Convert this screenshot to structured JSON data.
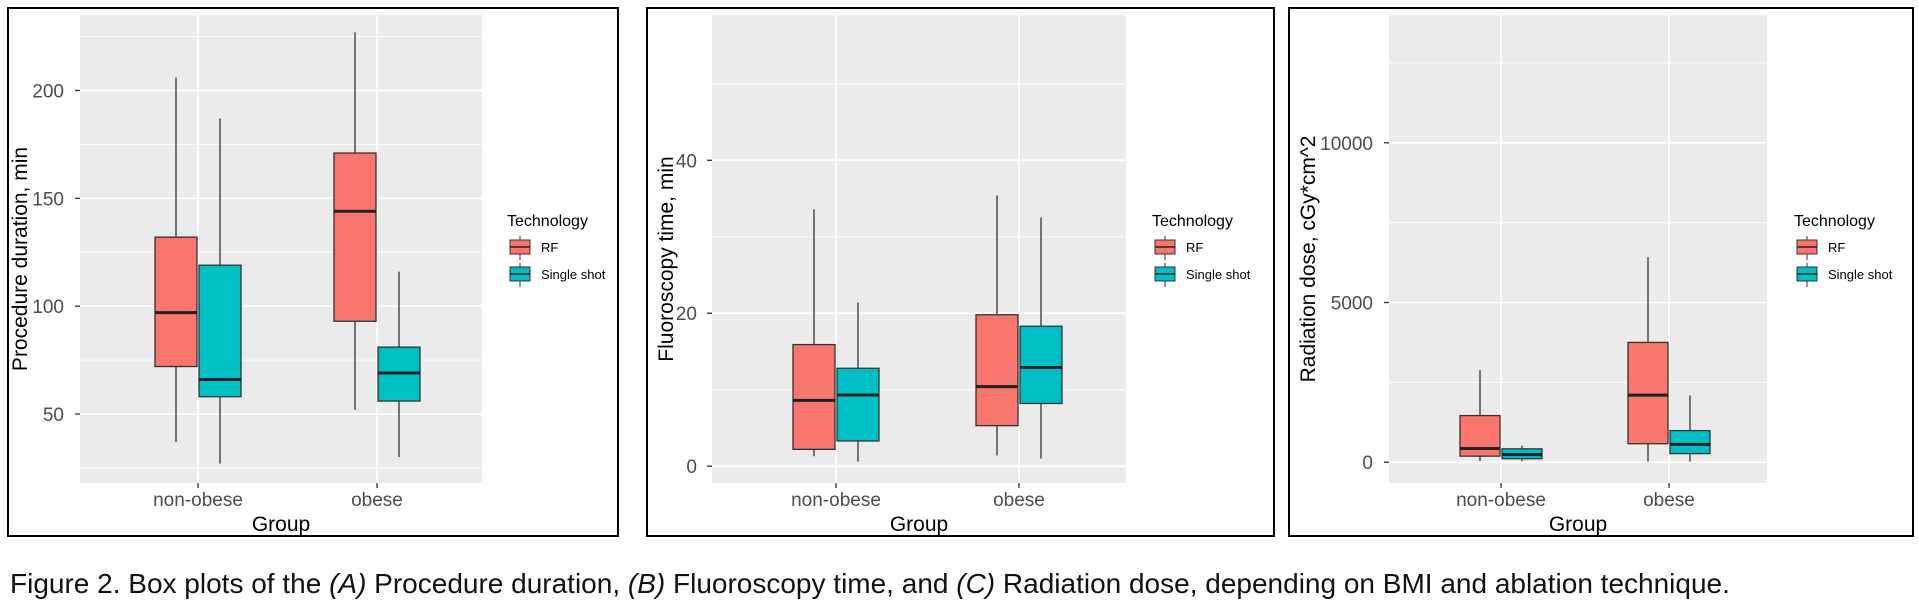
{
  "caption": {
    "prefix": "Figure 2. Box plots of the ",
    "a_label": "(A)",
    "a_text": " Procedure duration, ",
    "b_label": "(B)",
    "b_text": " Fluoroscopy time, and ",
    "c_label": "(C)",
    "c_text": " Radiation dose, depending on BMI and ablation technique."
  },
  "colors": {
    "rf": "#F8766D",
    "single_shot": "#00BFC4",
    "panel_bg": "#EBEBEB",
    "grid": "#FFFFFF",
    "box_stroke": "#333333"
  },
  "chart_data": [
    {
      "type": "box",
      "panel": "A",
      "xlabel": "Group",
      "ylabel": "Procedure duration, min",
      "ylim": [
        18,
        235
      ],
      "yticks": [
        50,
        100,
        150,
        200
      ],
      "ytick_labels": [
        "50",
        "100",
        "150",
        "200"
      ],
      "categories": [
        "non-obese",
        "obese"
      ],
      "legend_title": "Technology",
      "series": [
        {
          "name": "RF",
          "boxes": [
            {
              "min": 37,
              "q1": 72,
              "median": 97,
              "q3": 132,
              "max": 206
            },
            {
              "min": 52,
              "q1": 93,
              "median": 144,
              "q3": 171,
              "max": 227
            }
          ]
        },
        {
          "name": "Single shot",
          "boxes": [
            {
              "min": 27,
              "q1": 58,
              "median": 66,
              "q3": 119,
              "max": 187
            },
            {
              "min": 30,
              "q1": 56,
              "median": 69,
              "q3": 81,
              "max": 116
            }
          ]
        }
      ]
    },
    {
      "type": "box",
      "panel": "B",
      "xlabel": "Group",
      "ylabel": "Fluoroscopy time, min",
      "ylim": [
        -2.2,
        59
      ],
      "yticks": [
        0,
        20,
        40
      ],
      "ytick_labels": [
        "0",
        "20",
        "40"
      ],
      "categories": [
        "non-obese",
        "obese"
      ],
      "legend_title": "Technology",
      "series": [
        {
          "name": "RF",
          "boxes": [
            {
              "min": 1.3,
              "q1": 2.2,
              "median": 8.6,
              "q3": 15.9,
              "max": 33.6
            },
            {
              "min": 1.4,
              "q1": 5.3,
              "median": 10.4,
              "q3": 19.8,
              "max": 35.4
            }
          ]
        },
        {
          "name": "Single shot",
          "boxes": [
            {
              "min": 0.6,
              "q1": 3.3,
              "median": 9.3,
              "q3": 12.8,
              "max": 21.4
            },
            {
              "min": 1.0,
              "q1": 8.2,
              "median": 12.9,
              "q3": 18.3,
              "max": 32.5
            }
          ]
        }
      ]
    },
    {
      "type": "box",
      "panel": "C",
      "xlabel": "Group",
      "ylabel": "Radiation dose, cGy*cm^2",
      "ylim": [
        -650,
        14000
      ],
      "yticks": [
        0,
        5000,
        10000
      ],
      "ytick_labels": [
        "0",
        "5000",
        "10000"
      ],
      "categories": [
        "non-obese",
        "obese"
      ],
      "legend_title": "Technology",
      "series": [
        {
          "name": "RF",
          "boxes": [
            {
              "min": 40,
              "q1": 190,
              "median": 430,
              "q3": 1460,
              "max": 2880
            },
            {
              "min": 20,
              "q1": 580,
              "median": 2100,
              "q3": 3750,
              "max": 6420
            }
          ]
        },
        {
          "name": "Single shot",
          "boxes": [
            {
              "min": 30,
              "q1": 110,
              "median": 240,
              "q3": 420,
              "max": 520
            },
            {
              "min": 20,
              "q1": 270,
              "median": 560,
              "q3": 990,
              "max": 2090
            }
          ]
        }
      ]
    }
  ]
}
